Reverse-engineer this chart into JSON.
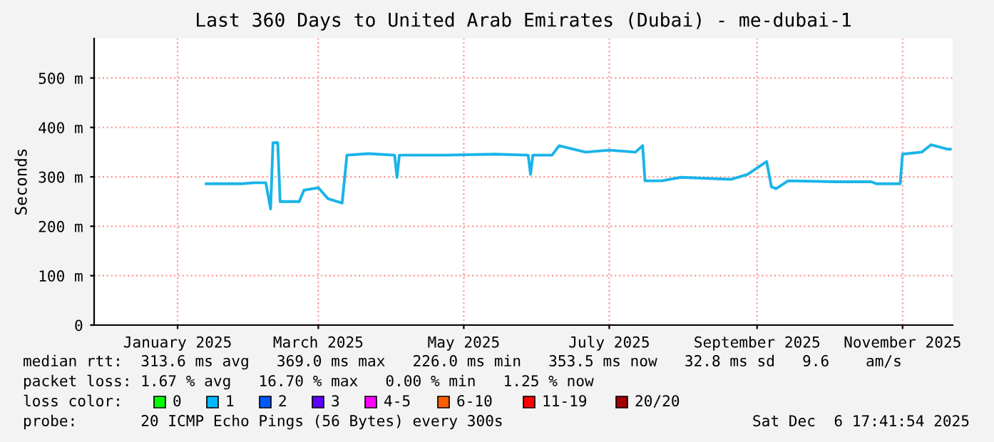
{
  "chart_data": {
    "type": "line",
    "title": "Last 360 Days to United Arab Emirates (Dubai) - me-dubai-1",
    "ylabel": "Seconds",
    "x": [
      "2025-01-27",
      "2025-02-03",
      "2025-02-11",
      "2025-02-16",
      "2025-02-21",
      "2025-02-23",
      "2025-02-24",
      "2025-02-26",
      "2025-02-27",
      "2025-03-07",
      "2025-03-09",
      "2025-03-15",
      "2025-03-19",
      "2025-03-25",
      "2025-03-27",
      "2025-04-05",
      "2025-04-16",
      "2025-04-17",
      "2025-04-18",
      "2025-05-07",
      "2025-05-28",
      "2025-06-11",
      "2025-06-12",
      "2025-06-13",
      "2025-06-21",
      "2025-06-24",
      "2025-07-05",
      "2025-07-15",
      "2025-07-26",
      "2025-07-29",
      "2025-07-30",
      "2025-08-06",
      "2025-08-14",
      "2025-09-04",
      "2025-09-11",
      "2025-09-19",
      "2025-09-21",
      "2025-09-23",
      "2025-09-28",
      "2025-10-19",
      "2025-11-02",
      "2025-11-04",
      "2025-11-14",
      "2025-11-15",
      "2025-11-23",
      "2025-11-27",
      "2025-12-04",
      "2025-12-05"
    ],
    "series": [
      {
        "color": "#1ab4e8",
        "values": [
          286,
          286,
          286,
          288,
          288,
          235,
          369,
          369,
          250,
          250,
          273,
          278,
          256,
          247,
          344,
          347,
          344,
          299,
          344,
          344,
          346,
          344,
          305,
          344,
          344,
          363,
          350,
          354,
          350,
          363,
          292,
          292,
          299,
          295,
          305,
          331,
          280,
          276,
          292,
          290,
          290,
          286,
          286,
          346,
          350,
          365,
          356,
          356
        ]
      }
    ],
    "xlim": [
      "2024-12-11",
      "2025-12-06"
    ],
    "xticks": [
      {
        "value": "2025-01-15",
        "label": "January 2025"
      },
      {
        "value": "2025-03-15",
        "label": "March 2025"
      },
      {
        "value": "2025-05-15",
        "label": "May 2025"
      },
      {
        "value": "2025-07-15",
        "label": "July 2025"
      },
      {
        "value": "2025-09-15",
        "label": "September 2025"
      },
      {
        "value": "2025-11-15",
        "label": "November 2025"
      }
    ],
    "ylim": [
      0,
      580
    ],
    "yticks": [
      0,
      {
        "value": 100,
        "label": "100 m"
      },
      {
        "value": 200,
        "label": "200 m"
      },
      {
        "value": 300,
        "label": "300 m"
      },
      {
        "value": 400,
        "label": "400 m"
      },
      {
        "value": 500,
        "label": "500 m"
      }
    ],
    "grid": true,
    "legend": false,
    "annotations": [
      "median rtt:  313.6 ms avg   369.0 ms max   226.0 ms min   353.5 ms now   32.8 ms sd   9.6    am/s",
      "packet loss: 1.67 % avg   16.70 % max   0.00 % min   1.25 % now",
      "loss color:",
      "0",
      "1",
      "2",
      "3",
      "4-5",
      "6-10",
      "11-19",
      "20/20",
      "probe:       20 ICMP Echo Pings (56 Bytes) every 300s",
      "Sat Dec  6 17:41:54 2025"
    ]
  }
}
